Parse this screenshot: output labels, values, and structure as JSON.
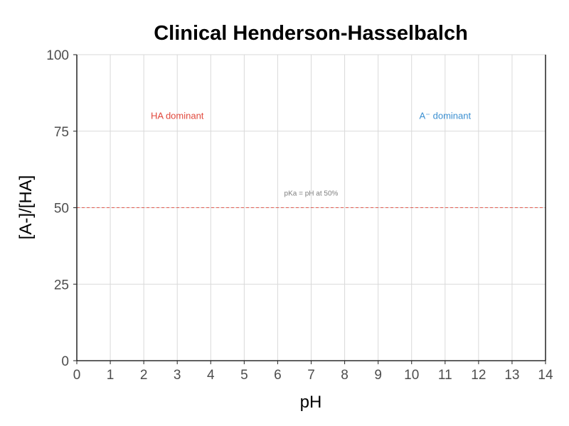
{
  "chart_data": {
    "type": "line",
    "title": "Clinical Henderson-Hasselbalch",
    "xlabel": "pH",
    "ylabel": "[A-]/[HA]",
    "xlim": [
      0,
      14
    ],
    "ylim": [
      0,
      100
    ],
    "x_ticks": [
      "0",
      "1",
      "2",
      "3",
      "4",
      "5",
      "6",
      "7",
      "8",
      "9",
      "10",
      "11",
      "12",
      "13",
      "14"
    ],
    "y_ticks": [
      "0",
      "25",
      "50",
      "75",
      "100"
    ],
    "grid": true,
    "series": [],
    "reference_lines": [
      {
        "axis": "y",
        "value": 50,
        "style": "dashed",
        "color": "#e05a4f"
      }
    ],
    "annotations": [
      {
        "text": "HA dominant",
        "x": 3,
        "y": 79,
        "color": "#e0473b"
      },
      {
        "text": "A⁻ dominant",
        "x": 11,
        "y": 79,
        "color": "#3a8fd1"
      },
      {
        "text": "pKa = pH at 50%",
        "x": 7,
        "y": 54,
        "color": "#7f7f7f"
      }
    ]
  }
}
